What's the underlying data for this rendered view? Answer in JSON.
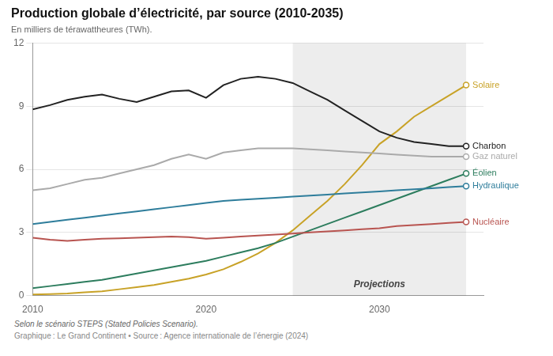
{
  "chart_data": {
    "type": "line",
    "title": "Production globale d’électricité, par source (2010-2035)",
    "subtitle": "En milliers de térawattheures (TWh).",
    "footnotes": [
      "Selon le scénario STEPS (Stated Policies Scenario).",
      "Graphique : Le Grand Continent • Source : Agence internationale de l’énergie (2024)"
    ],
    "x": [
      2010,
      2011,
      2012,
      2013,
      2014,
      2015,
      2016,
      2017,
      2018,
      2019,
      2020,
      2021,
      2022,
      2023,
      2024,
      2025,
      2026,
      2027,
      2028,
      2029,
      2030,
      2031,
      2032,
      2033,
      2034,
      2035
    ],
    "series": [
      {
        "name": "Charbon",
        "color": "#222222",
        "values": [
          8.85,
          9.05,
          9.3,
          9.45,
          9.55,
          9.35,
          9.2,
          9.45,
          9.7,
          9.75,
          9.4,
          10.0,
          10.3,
          10.4,
          10.3,
          10.1,
          9.7,
          9.3,
          8.8,
          8.3,
          7.8,
          7.5,
          7.3,
          7.2,
          7.1,
          7.1
        ]
      },
      {
        "name": "Gaz naturel",
        "color": "#aaaaaa",
        "values": [
          5.0,
          5.1,
          5.3,
          5.5,
          5.6,
          5.8,
          6.0,
          6.2,
          6.5,
          6.7,
          6.5,
          6.8,
          6.9,
          7.0,
          7.0,
          7.0,
          6.95,
          6.9,
          6.85,
          6.8,
          6.75,
          6.7,
          6.65,
          6.6,
          6.6,
          6.6
        ]
      },
      {
        "name": "Hydraulique",
        "color": "#2e7d9b",
        "values": [
          3.4,
          3.5,
          3.6,
          3.7,
          3.8,
          3.9,
          4.0,
          4.1,
          4.2,
          4.3,
          4.4,
          4.5,
          4.55,
          4.6,
          4.65,
          4.7,
          4.75,
          4.8,
          4.85,
          4.9,
          4.95,
          5.0,
          5.05,
          5.1,
          5.15,
          5.2
        ]
      },
      {
        "name": "Nucléaire",
        "color": "#b85450",
        "values": [
          2.75,
          2.65,
          2.6,
          2.65,
          2.7,
          2.72,
          2.75,
          2.78,
          2.8,
          2.78,
          2.7,
          2.75,
          2.8,
          2.85,
          2.9,
          2.95,
          3.0,
          3.05,
          3.1,
          3.15,
          3.2,
          3.3,
          3.35,
          3.4,
          3.45,
          3.5
        ]
      },
      {
        "name": "Éolien",
        "color": "#2d7d5e",
        "values": [
          0.35,
          0.45,
          0.55,
          0.65,
          0.75,
          0.9,
          1.05,
          1.2,
          1.35,
          1.5,
          1.65,
          1.85,
          2.05,
          2.25,
          2.5,
          2.8,
          3.1,
          3.4,
          3.7,
          4.0,
          4.3,
          4.6,
          4.9,
          5.2,
          5.5,
          5.8
        ]
      },
      {
        "name": "Solaire",
        "color": "#c8a227",
        "values": [
          0.05,
          0.07,
          0.1,
          0.15,
          0.2,
          0.3,
          0.4,
          0.5,
          0.65,
          0.8,
          1.0,
          1.25,
          1.6,
          2.0,
          2.5,
          3.1,
          3.8,
          4.5,
          5.3,
          6.2,
          7.2,
          7.8,
          8.5,
          9.0,
          9.5,
          10.0
        ]
      }
    ],
    "annotations": [
      {
        "text": "Projections",
        "x_start": 2025,
        "x_end": 2035
      }
    ],
    "xlim": [
      2010,
      2036
    ],
    "xticks": [
      2010,
      2020,
      2030
    ],
    "ylim": [
      0,
      12
    ],
    "yticks": [
      0,
      3,
      6,
      9,
      12
    ],
    "grid": "y"
  }
}
